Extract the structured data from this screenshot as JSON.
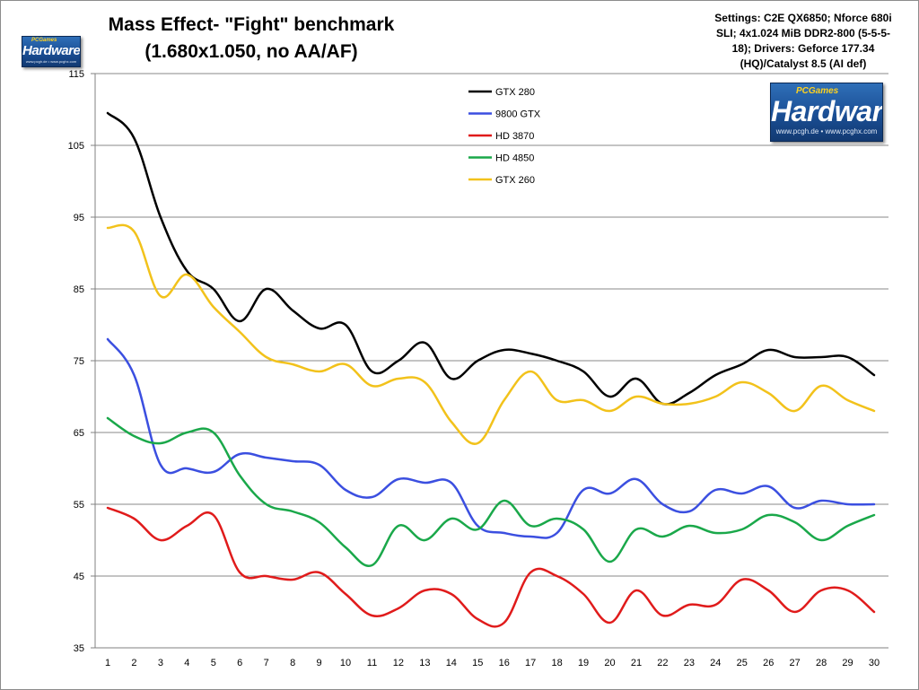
{
  "header": {
    "title_line1": "Mass Effect- \"Fight\" benchmark",
    "title_line2": "(1.680x1.050, no AA/AF)",
    "settings_lines": [
      "Settings: C2E QX6850; Nforce 680i",
      "SLI;  4x1.024 MiB DDR2-800  (5-5-5-",
      "18); Drivers: Geforce 177.34",
      "(HQ)/Catalyst 8.5 (AI def)"
    ]
  },
  "logos": {
    "small": {
      "brand": "Hardware",
      "games": "PCGames",
      "tag": "www.pcgh.de • www.pcghx.com"
    },
    "large": {
      "brand": "Hardware",
      "games": "PCGames",
      "tag": "www.pcgh.de • www.pcghx.com"
    }
  },
  "chart_data": {
    "type": "line",
    "title": "Mass Effect- \"Fight\" benchmark (1.680x1.050, no AA/AF)",
    "xlabel": "",
    "ylabel": "",
    "x": [
      1,
      2,
      3,
      4,
      5,
      6,
      7,
      8,
      9,
      10,
      11,
      12,
      13,
      14,
      15,
      16,
      17,
      18,
      19,
      20,
      21,
      22,
      23,
      24,
      25,
      26,
      27,
      28,
      29,
      30
    ],
    "ylim": [
      35,
      115
    ],
    "yticks": [
      35,
      45,
      55,
      65,
      75,
      85,
      95,
      105,
      115
    ],
    "grid": true,
    "legend_position": "top-center",
    "series": [
      {
        "name": "GTX 280",
        "color": "#000000",
        "values": [
          109.5,
          106,
          95,
          87.5,
          85,
          80.5,
          85,
          82,
          79.5,
          80,
          73.5,
          75,
          77.5,
          72.5,
          75,
          76.5,
          76,
          75,
          73.5,
          70,
          72.5,
          69,
          70.5,
          73,
          74.5,
          76.5,
          75.5,
          75.5,
          75.5,
          73
        ]
      },
      {
        "name": "9800 GTX",
        "color": "#3b4fe0",
        "values": [
          78,
          73,
          60.5,
          60,
          59.5,
          62,
          61.5,
          61,
          60.5,
          57,
          56,
          58.5,
          58,
          58,
          52,
          51,
          50.5,
          51,
          57,
          56.5,
          58.5,
          55,
          54,
          57,
          56.5,
          57.5,
          54.5,
          55.5,
          55,
          55
        ]
      },
      {
        "name": "HD 3870",
        "color": "#e01b1b",
        "values": [
          54.5,
          53,
          50,
          52,
          53.5,
          45.5,
          45,
          44.5,
          45.5,
          42.5,
          39.5,
          40.5,
          43,
          42.5,
          39,
          38.5,
          45.5,
          45,
          42.5,
          38.5,
          43,
          39.5,
          41,
          41,
          44.5,
          43,
          40,
          43,
          43,
          40
        ]
      },
      {
        "name": "HD 4850",
        "color": "#1aa84a",
        "values": [
          67,
          64.5,
          63.5,
          65,
          65,
          59,
          55,
          54,
          52.5,
          49,
          46.5,
          52,
          50,
          53,
          51.5,
          55.5,
          52,
          53,
          51.5,
          47,
          51.5,
          50.5,
          52,
          51,
          51.5,
          53.5,
          52.5,
          50,
          52,
          53.5
        ]
      },
      {
        "name": "GTX 260",
        "color": "#f2c21b",
        "values": [
          93.5,
          93,
          84,
          87,
          82.5,
          79,
          75.5,
          74.5,
          73.5,
          74.5,
          71.5,
          72.5,
          72,
          66.5,
          63.5,
          69.5,
          73.5,
          69.5,
          69.5,
          68,
          70,
          69,
          69,
          70,
          72,
          70.5,
          68,
          71.5,
          69.5,
          68
        ]
      }
    ]
  }
}
